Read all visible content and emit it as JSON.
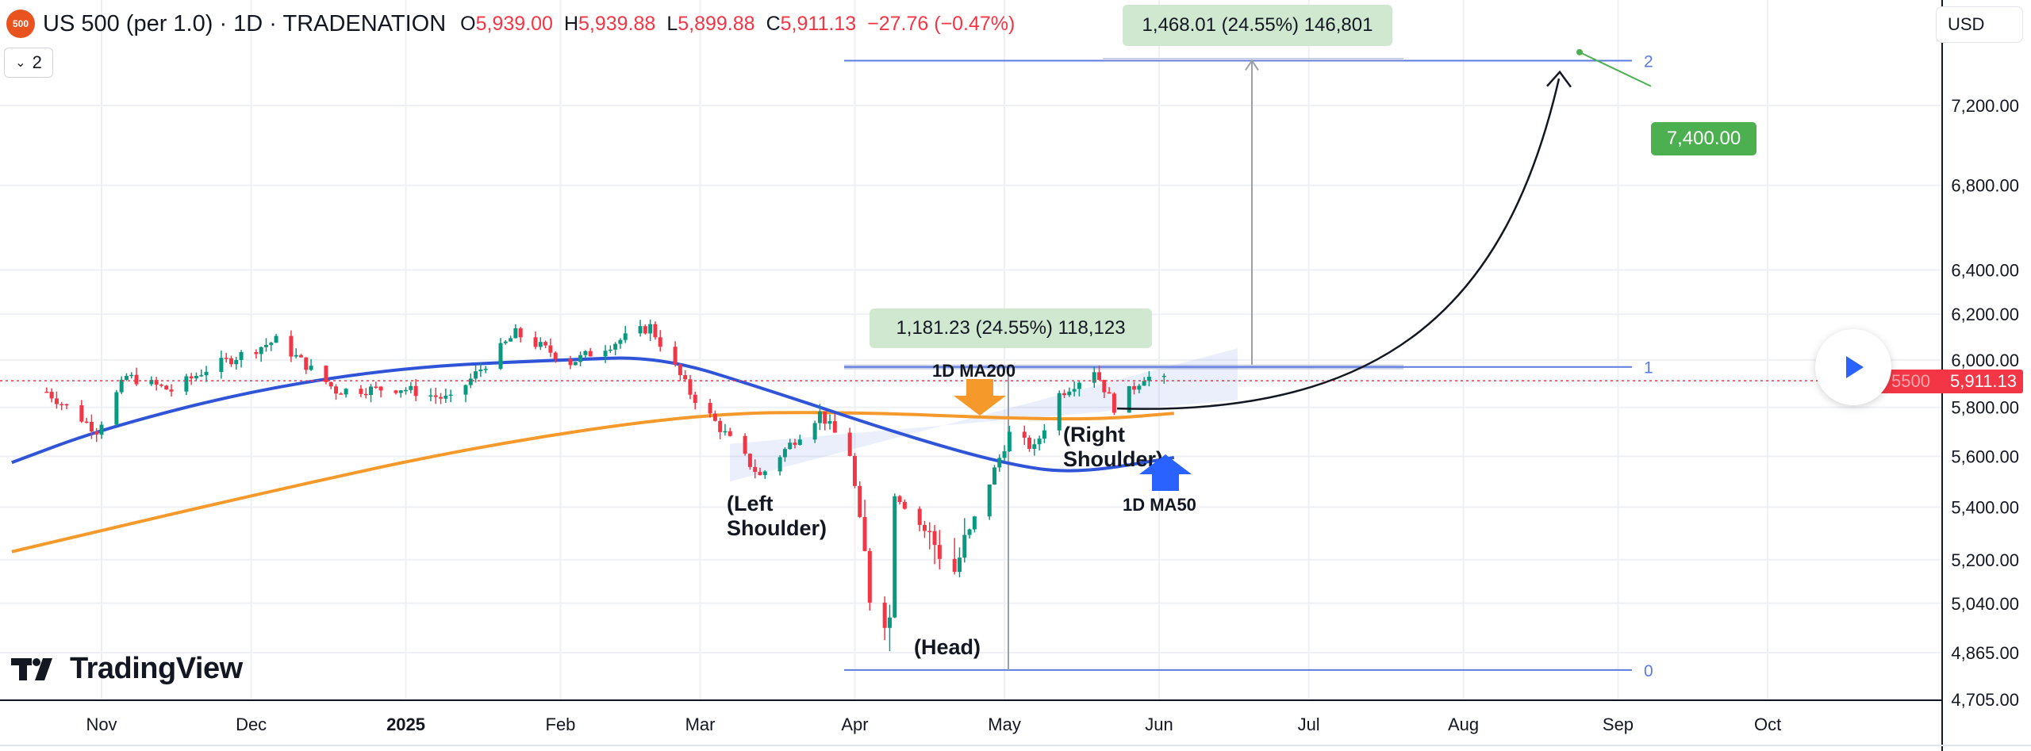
{
  "header": {
    "logo_text": "500",
    "title": "US 500 (per 1.0) · 1D · TRADENATION",
    "ohlc": [
      {
        "k": "O",
        "v": "5,939.00"
      },
      {
        "k": "H",
        "v": "5,939.88"
      },
      {
        "k": "L",
        "v": "5,899.88"
      },
      {
        "k": "C",
        "v": "5,911.13"
      },
      {
        "k": "",
        "v": "−27.76 (−0.47%)"
      }
    ]
  },
  "layers_count": "2",
  "currency": "USD",
  "brand": "TradingView",
  "colors": {
    "up": "#089981",
    "down": "#f23645",
    "ma50": "#2f54d8",
    "ma200": "#f5992a",
    "fib": "#5b7be0",
    "annotation_arrow_up": "#2962ff",
    "annotation_arrow_down": "#f5992a",
    "target": "#4caf50"
  },
  "chart_data": {
    "type": "candlestick",
    "x_axis": {
      "months": [
        "Nov",
        "Dec",
        "2025",
        "Feb",
        "Mar",
        "Apr",
        "May",
        "Jun",
        "Jul",
        "Aug",
        "Sep",
        "Oct"
      ]
    },
    "y_axis": {
      "scale": "log",
      "ticks": [
        "7,200.00",
        "6,800.00",
        "6,400.00",
        "6,200.00",
        "6,000.00",
        "5,800.00",
        "5,600.00",
        "5,400.00",
        "5,200.00",
        "5,040.00",
        "4,865.00",
        "4,705.00"
      ],
      "tick_values": [
        7200,
        6800,
        6400,
        6200,
        6000,
        5800,
        5600,
        5400,
        5200,
        5040,
        4865,
        4705
      ],
      "range": [
        4705,
        7620
      ]
    },
    "last_price": {
      "value": 5911.13,
      "label": "5,911.13",
      "ghost_label": "5500"
    },
    "candle_anchors": [
      [
        "2024-10-21",
        5865
      ],
      [
        "2024-10-31",
        5705
      ],
      [
        "2024-11-06",
        5930
      ],
      [
        "2024-11-15",
        5870
      ],
      [
        "2024-11-22",
        5960
      ],
      [
        "2024-12-06",
        6085
      ],
      [
        "2024-12-18",
        5870
      ],
      [
        "2024-12-31",
        5880
      ],
      [
        "2025-01-10",
        5830
      ],
      [
        "2025-01-23",
        6115
      ],
      [
        "2025-02-03",
        5990
      ],
      [
        "2025-02-19",
        6145
      ],
      [
        "2025-02-27",
        5860
      ],
      [
        "2025-03-13",
        5520
      ],
      [
        "2025-03-25",
        5775
      ],
      [
        "2025-03-31",
        5610
      ],
      [
        "2025-04-04",
        5075
      ],
      [
        "2025-04-08",
        4985
      ],
      [
        "2025-04-09",
        5460
      ],
      [
        "2025-04-21",
        5160
      ],
      [
        "2025-05-02",
        5690
      ],
      [
        "2025-05-07",
        5630
      ],
      [
        "2025-05-12",
        5855
      ],
      [
        "2025-05-19",
        5960
      ],
      [
        "2025-05-23",
        5800
      ],
      [
        "2025-05-29",
        5930
      ],
      [
        "2025-06-02",
        5911
      ]
    ],
    "ma50": [
      [
        "2024-10-14",
        5575
      ],
      [
        "2024-11-01",
        5710
      ],
      [
        "2024-12-01",
        5870
      ],
      [
        "2025-01-01",
        5970
      ],
      [
        "2025-02-01",
        6000
      ],
      [
        "2025-02-21",
        6015
      ],
      [
        "2025-03-15",
        5870
      ],
      [
        "2025-04-10",
        5690
      ],
      [
        "2025-05-01",
        5570
      ],
      [
        "2025-05-15",
        5530
      ],
      [
        "2025-06-04",
        5595
      ]
    ],
    "ma200": [
      [
        "2024-10-14",
        5230
      ],
      [
        "2024-12-01",
        5445
      ],
      [
        "2025-01-15",
        5640
      ],
      [
        "2025-03-01",
        5775
      ],
      [
        "2025-04-01",
        5780
      ],
      [
        "2025-05-01",
        5755
      ],
      [
        "2025-05-20",
        5750
      ],
      [
        "2025-06-04",
        5775
      ]
    ],
    "fib_levels": [
      {
        "label": "2",
        "price": 7435
      },
      {
        "label": "1",
        "price": 5970
      },
      {
        "label": "0",
        "price": 4805
      }
    ],
    "measurements": [
      {
        "label": "1,181.23 (24.55%) 118,123"
      },
      {
        "label": "1,468.01 (24.55%) 146,801"
      }
    ],
    "target": {
      "label": "7,400.00",
      "price": 7400
    },
    "annotations": [
      {
        "text": "(Left\nShoulder)"
      },
      {
        "text": "(Head)"
      },
      {
        "text": "(Right\nShoulder)"
      },
      {
        "text": "1D MA200"
      },
      {
        "text": "1D MA50"
      }
    ]
  }
}
